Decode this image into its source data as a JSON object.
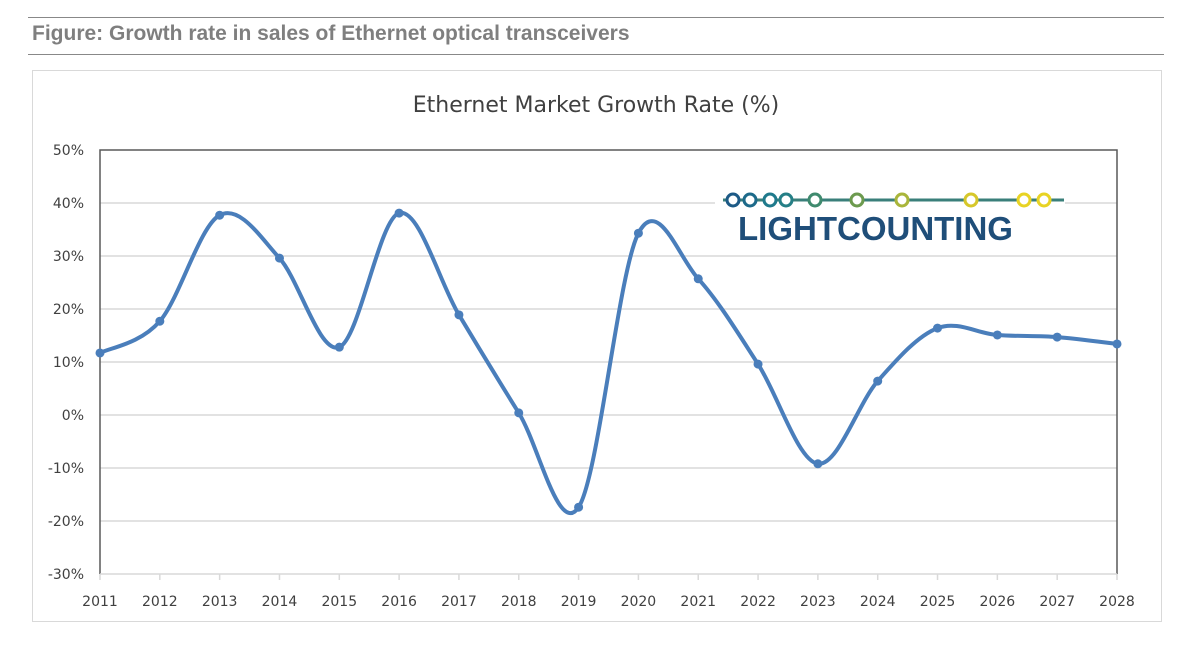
{
  "figure_caption": "Figure: Growth rate in sales of Ethernet optical transceivers",
  "logo_text": "LIGHTCOUNTING",
  "chart_data": {
    "type": "line",
    "title": "Ethernet Market Growth Rate (%)",
    "xlabel": "",
    "ylabel": "",
    "categories": [
      "2011",
      "2012",
      "2013",
      "2014",
      "2015",
      "2016",
      "2017",
      "2018",
      "2019",
      "2020",
      "2021",
      "2022",
      "2023",
      "2024",
      "2025",
      "2026",
      "2027",
      "2028"
    ],
    "values": [
      11.7,
      17.7,
      37.7,
      29.6,
      12.8,
      38.1,
      18.9,
      0.4,
      -17.4,
      34.3,
      25.7,
      9.6,
      -9.2,
      6.4,
      16.4,
      15.1,
      14.7,
      13.4
    ],
    "ylim": [
      -30,
      50
    ],
    "yticks": [
      "-30%",
      "-20%",
      "-10%",
      "0%",
      "10%",
      "20%",
      "30%",
      "40%",
      "50%"
    ],
    "grid": true,
    "smoothed": true,
    "legend": "none",
    "line_color": "#4a7ebb",
    "grid_color": "#d9d9d9"
  }
}
